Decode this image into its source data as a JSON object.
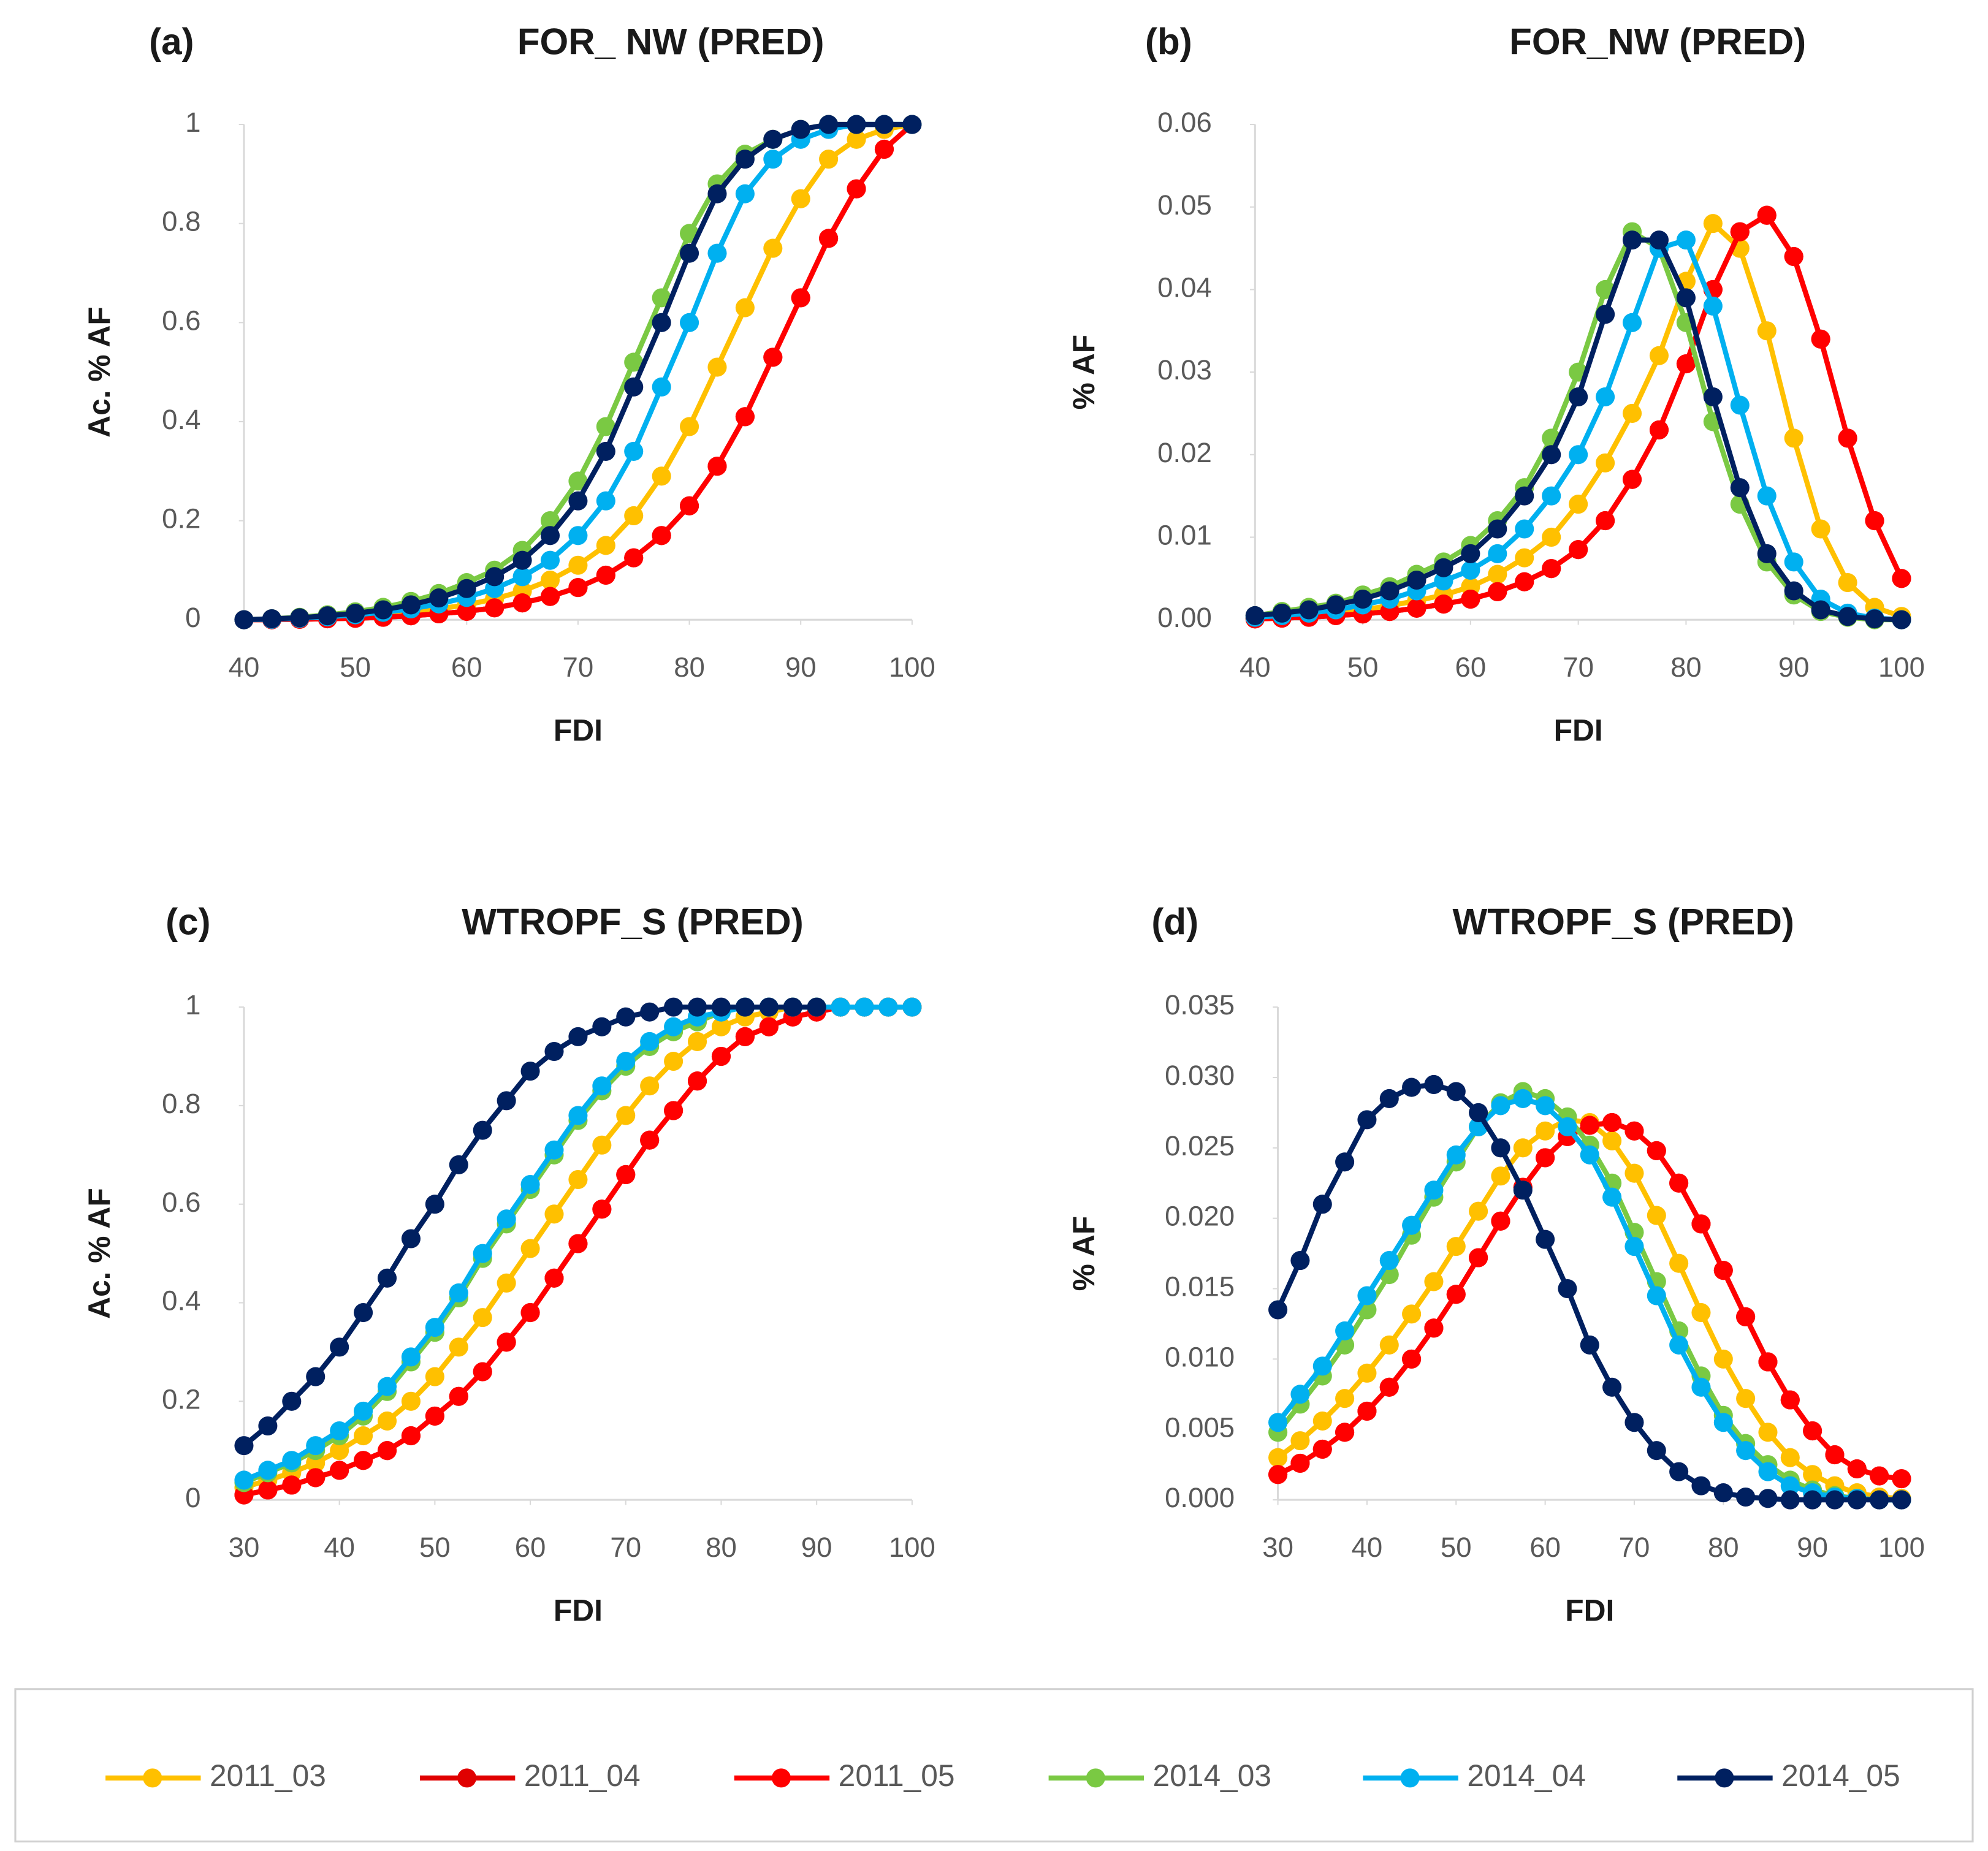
{
  "chart_data": [
    {
      "type": "line",
      "panel_label": "(a)",
      "title": "FOR_ NW (PRED)",
      "xlabel": "FDI",
      "ylabel": "Ac. % AF",
      "x": [
        40,
        42.5,
        45,
        47.5,
        50,
        52.5,
        55,
        57.5,
        60,
        62.5,
        65,
        67.5,
        70,
        72.5,
        75,
        77.5,
        80,
        82.5,
        85,
        87.5,
        90,
        92.5,
        95,
        97.5,
        100
      ],
      "xlim": [
        40,
        100
      ],
      "xticks": [
        40,
        50,
        60,
        70,
        80,
        90,
        100
      ],
      "ylim": [
        0,
        1
      ],
      "yticks": [
        0,
        0.2,
        0.4,
        0.6,
        0.8,
        1
      ],
      "series": [
        {
          "name": "2011_03",
          "color": "#ffc000",
          "values": [
            0,
            0.001,
            0.002,
            0.004,
            0.006,
            0.01,
            0.015,
            0.022,
            0.03,
            0.042,
            0.058,
            0.08,
            0.11,
            0.15,
            0.21,
            0.29,
            0.39,
            0.51,
            0.63,
            0.75,
            0.85,
            0.93,
            0.97,
            0.99,
            1
          ]
        },
        {
          "name": "2011_04",
          "color": "#e00000",
          "values": [
            0,
            0,
            0.001,
            0.002,
            0.003,
            0.005,
            0.008,
            0.012,
            0.017,
            0.024,
            0.034,
            0.047,
            0.065,
            0.09,
            0.125,
            0.17,
            0.23,
            0.31,
            0.41,
            0.53,
            0.65,
            0.77,
            0.87,
            0.95,
            1
          ]
        },
        {
          "name": "2011_05",
          "color": "#ff0000",
          "values": [
            0,
            0,
            0.001,
            0.002,
            0.003,
            0.005,
            0.008,
            0.012,
            0.017,
            0.024,
            0.034,
            0.047,
            0.065,
            0.09,
            0.125,
            0.17,
            0.23,
            0.31,
            0.41,
            0.53,
            0.65,
            0.77,
            0.87,
            0.95,
            1
          ]
        },
        {
          "name": "2014_03",
          "color": "#7ac943",
          "values": [
            0,
            0.002,
            0.005,
            0.01,
            0.016,
            0.025,
            0.037,
            0.053,
            0.075,
            0.1,
            0.14,
            0.2,
            0.28,
            0.39,
            0.52,
            0.65,
            0.78,
            0.88,
            0.94,
            0.97,
            0.99,
            1,
            1,
            1,
            1
          ]
        },
        {
          "name": "2014_04",
          "color": "#00b0f0",
          "values": [
            0,
            0.001,
            0.003,
            0.006,
            0.01,
            0.015,
            0.022,
            0.032,
            0.045,
            0.063,
            0.087,
            0.12,
            0.17,
            0.24,
            0.34,
            0.47,
            0.6,
            0.74,
            0.86,
            0.93,
            0.97,
            0.99,
            1,
            1,
            1
          ]
        },
        {
          "name": "2014_05",
          "color": "#002060",
          "values": [
            0,
            0.002,
            0.004,
            0.008,
            0.013,
            0.02,
            0.03,
            0.044,
            0.063,
            0.087,
            0.12,
            0.17,
            0.24,
            0.34,
            0.47,
            0.6,
            0.74,
            0.86,
            0.93,
            0.97,
            0.99,
            1,
            1,
            1,
            1
          ]
        }
      ]
    },
    {
      "type": "line",
      "panel_label": "(b)",
      "title": "FOR_NW (PRED)",
      "xlabel": "FDI",
      "ylabel": "% AF",
      "x": [
        40,
        42.5,
        45,
        47.5,
        50,
        52.5,
        55,
        57.5,
        60,
        62.5,
        65,
        67.5,
        70,
        72.5,
        75,
        77.5,
        80,
        82.5,
        85,
        87.5,
        90,
        92.5,
        95,
        97.5,
        100
      ],
      "xlim": [
        40,
        100
      ],
      "xticks": [
        40,
        50,
        60,
        70,
        80,
        90,
        100
      ],
      "ylim": [
        0,
        0.06
      ],
      "yticks": [
        {
          "value": 0,
          "label": "0.00"
        },
        0.01,
        0.02,
        0.03,
        0.04,
        0.05,
        0.06
      ],
      "series": [
        {
          "name": "2011_03",
          "color": "#ffc000",
          "values": [
            0.0002,
            0.0003,
            0.0005,
            0.0008,
            0.0012,
            0.0017,
            0.0023,
            0.003,
            0.004,
            0.0055,
            0.0075,
            0.01,
            0.014,
            0.019,
            0.025,
            0.032,
            0.041,
            0.048,
            0.045,
            0.035,
            0.022,
            0.011,
            0.0045,
            0.0015,
            0.0004
          ]
        },
        {
          "name": "2011_04",
          "color": "#e00000",
          "values": [
            0.0001,
            0.0002,
            0.0003,
            0.0005,
            0.0007,
            0.001,
            0.0014,
            0.0019,
            0.0025,
            0.0034,
            0.0046,
            0.0062,
            0.0085,
            0.012,
            0.017,
            0.023,
            0.031,
            0.04,
            0.047,
            0.049,
            0.044,
            0.034,
            0.022,
            0.012,
            0.005
          ]
        },
        {
          "name": "2011_05",
          "color": "#ff0000",
          "values": [
            0.0001,
            0.0002,
            0.0003,
            0.0005,
            0.0007,
            0.001,
            0.0014,
            0.0019,
            0.0025,
            0.0034,
            0.0046,
            0.0062,
            0.0085,
            0.012,
            0.017,
            0.023,
            0.031,
            0.04,
            0.047,
            0.049,
            0.044,
            0.034,
            0.022,
            0.012,
            0.005
          ]
        },
        {
          "name": "2014_03",
          "color": "#7ac943",
          "values": [
            0.0005,
            0.001,
            0.0015,
            0.002,
            0.003,
            0.004,
            0.0055,
            0.007,
            0.009,
            0.012,
            0.016,
            0.022,
            0.03,
            0.04,
            0.047,
            0.045,
            0.036,
            0.024,
            0.014,
            0.007,
            0.003,
            0.001,
            0.0003,
            0,
            0
          ]
        },
        {
          "name": "2014_04",
          "color": "#00b0f0",
          "values": [
            0.0003,
            0.0005,
            0.0008,
            0.0012,
            0.0018,
            0.0025,
            0.0035,
            0.0047,
            0.006,
            0.008,
            0.011,
            0.015,
            0.02,
            0.027,
            0.036,
            0.045,
            0.046,
            0.038,
            0.026,
            0.015,
            0.007,
            0.0025,
            0.0008,
            0.0002,
            0
          ]
        },
        {
          "name": "2014_05",
          "color": "#002060",
          "values": [
            0.0005,
            0.0008,
            0.0012,
            0.0018,
            0.0025,
            0.0035,
            0.0048,
            0.0063,
            0.008,
            0.011,
            0.015,
            0.02,
            0.027,
            0.037,
            0.046,
            0.046,
            0.039,
            0.027,
            0.016,
            0.008,
            0.0035,
            0.0012,
            0.0004,
            0.0001,
            0
          ]
        }
      ]
    },
    {
      "type": "line",
      "panel_label": "(c)",
      "title": "WTROPF_S (PRED)",
      "xlabel": "FDI",
      "ylabel": "Ac. % AF",
      "x": [
        30,
        32.5,
        35,
        37.5,
        40,
        42.5,
        45,
        47.5,
        50,
        52.5,
        55,
        57.5,
        60,
        62.5,
        65,
        67.5,
        70,
        72.5,
        75,
        77.5,
        80,
        82.5,
        85,
        87.5,
        90,
        92.5,
        95,
        97.5,
        100
      ],
      "xlim": [
        30,
        100
      ],
      "xticks": [
        30,
        40,
        50,
        60,
        70,
        80,
        90,
        100
      ],
      "ylim": [
        0,
        1
      ],
      "yticks": [
        0,
        0.2,
        0.4,
        0.6,
        0.8,
        1
      ],
      "series": [
        {
          "name": "2011_03",
          "color": "#ffc000",
          "values": [
            0.025,
            0.04,
            0.055,
            0.075,
            0.1,
            0.13,
            0.16,
            0.2,
            0.25,
            0.31,
            0.37,
            0.44,
            0.51,
            0.58,
            0.65,
            0.72,
            0.78,
            0.84,
            0.89,
            0.93,
            0.96,
            0.98,
            0.99,
            1,
            1,
            1,
            1,
            1,
            1
          ]
        },
        {
          "name": "2011_04",
          "color": "#e00000",
          "values": [
            0.01,
            0.02,
            0.03,
            0.045,
            0.06,
            0.08,
            0.1,
            0.13,
            0.17,
            0.21,
            0.26,
            0.32,
            0.38,
            0.45,
            0.52,
            0.59,
            0.66,
            0.73,
            0.79,
            0.85,
            0.9,
            0.94,
            0.96,
            0.98,
            0.99,
            1,
            1,
            1,
            1
          ]
        },
        {
          "name": "2011_05",
          "color": "#ff0000",
          "values": [
            0.01,
            0.02,
            0.03,
            0.045,
            0.06,
            0.08,
            0.1,
            0.13,
            0.17,
            0.21,
            0.26,
            0.32,
            0.38,
            0.45,
            0.52,
            0.59,
            0.66,
            0.73,
            0.79,
            0.85,
            0.9,
            0.94,
            0.96,
            0.98,
            0.99,
            1,
            1,
            1,
            1
          ]
        },
        {
          "name": "2014_03",
          "color": "#7ac943",
          "values": [
            0.035,
            0.055,
            0.075,
            0.1,
            0.13,
            0.17,
            0.22,
            0.28,
            0.34,
            0.41,
            0.49,
            0.56,
            0.63,
            0.7,
            0.77,
            0.83,
            0.88,
            0.92,
            0.95,
            0.97,
            0.99,
            1,
            1,
            1,
            1,
            1,
            1,
            1,
            1
          ]
        },
        {
          "name": "2014_04",
          "color": "#00b0f0",
          "values": [
            0.04,
            0.06,
            0.08,
            0.11,
            0.14,
            0.18,
            0.23,
            0.29,
            0.35,
            0.42,
            0.5,
            0.57,
            0.64,
            0.71,
            0.78,
            0.84,
            0.89,
            0.93,
            0.96,
            0.98,
            0.99,
            1,
            1,
            1,
            1,
            1,
            1,
            1,
            1
          ]
        },
        {
          "name": "2014_05",
          "color": "#002060",
          "values": [
            0.11,
            0.15,
            0.2,
            0.25,
            0.31,
            0.38,
            0.45,
            0.53,
            0.6,
            0.68,
            0.75,
            0.81,
            0.87,
            0.91,
            0.94,
            0.96,
            0.98,
            0.99,
            1,
            1,
            1,
            1,
            1,
            1,
            1,
            null,
            null,
            null,
            null
          ]
        }
      ]
    },
    {
      "type": "line",
      "panel_label": "(d)",
      "title": "WTROPF_S (PRED)",
      "xlabel": "FDI",
      "ylabel": "% AF",
      "x": [
        30,
        32.5,
        35,
        37.5,
        40,
        42.5,
        45,
        47.5,
        50,
        52.5,
        55,
        57.5,
        60,
        62.5,
        65,
        67.5,
        70,
        72.5,
        75,
        77.5,
        80,
        82.5,
        85,
        87.5,
        90,
        92.5,
        95,
        97.5,
        100
      ],
      "xlim": [
        30,
        100
      ],
      "xticks": [
        30,
        40,
        50,
        60,
        70,
        80,
        90,
        100
      ],
      "ylim": [
        0,
        0.035
      ],
      "yticks": [
        {
          "value": 0,
          "label": "0.000"
        },
        0.005,
        {
          "value": 0.01,
          "label": "0.010"
        },
        0.015,
        {
          "value": 0.02,
          "label": "0.020"
        },
        0.025,
        {
          "value": 0.03,
          "label": "0.030"
        },
        0.035
      ],
      "series": [
        {
          "name": "2011_03",
          "color": "#ffc000",
          "values": [
            0.003,
            0.0042,
            0.0056,
            0.0072,
            0.009,
            0.011,
            0.0132,
            0.0155,
            0.018,
            0.0205,
            0.023,
            0.025,
            0.0262,
            0.027,
            0.0268,
            0.0255,
            0.0232,
            0.0202,
            0.0168,
            0.0133,
            0.01,
            0.0072,
            0.0048,
            0.003,
            0.0018,
            0.001,
            0.0005,
            0.0002,
            0.0001
          ]
        },
        {
          "name": "2011_04",
          "color": "#e00000",
          "values": [
            0.0018,
            0.0026,
            0.0036,
            0.0048,
            0.0063,
            0.008,
            0.01,
            0.0122,
            0.0146,
            0.0172,
            0.0198,
            0.0222,
            0.0243,
            0.0258,
            0.0266,
            0.0268,
            0.0262,
            0.0248,
            0.0225,
            0.0196,
            0.0163,
            0.013,
            0.0098,
            0.0071,
            0.0049,
            0.0032,
            0.0022,
            0.0017,
            0.0015
          ]
        },
        {
          "name": "2011_05",
          "color": "#ff0000",
          "values": [
            0.0018,
            0.0026,
            0.0036,
            0.0048,
            0.0063,
            0.008,
            0.01,
            0.0122,
            0.0146,
            0.0172,
            0.0198,
            0.0222,
            0.0243,
            0.0258,
            0.0266,
            0.0268,
            0.0262,
            0.0248,
            0.0225,
            0.0196,
            0.0163,
            0.013,
            0.0098,
            0.0071,
            0.0049,
            0.0032,
            0.0022,
            0.0017,
            0.0015
          ]
        },
        {
          "name": "2014_03",
          "color": "#7ac943",
          "values": [
            0.0048,
            0.0068,
            0.0088,
            0.011,
            0.0135,
            0.016,
            0.0188,
            0.0215,
            0.024,
            0.0265,
            0.0282,
            0.029,
            0.0285,
            0.0272,
            0.0252,
            0.0225,
            0.019,
            0.0155,
            0.012,
            0.0088,
            0.006,
            0.004,
            0.0025,
            0.0014,
            0.0007,
            0.0003,
            0.0001,
            0,
            0
          ]
        },
        {
          "name": "2014_04",
          "color": "#00b0f0",
          "values": [
            0.0055,
            0.0075,
            0.0095,
            0.012,
            0.0145,
            0.017,
            0.0195,
            0.022,
            0.0245,
            0.0265,
            0.028,
            0.0285,
            0.028,
            0.0265,
            0.0245,
            0.0215,
            0.018,
            0.0145,
            0.011,
            0.008,
            0.0055,
            0.0035,
            0.002,
            0.001,
            0.0005,
            0.0002,
            0.0001,
            0,
            0
          ]
        },
        {
          "name": "2014_05",
          "color": "#002060",
          "values": [
            0.0135,
            0.017,
            0.021,
            0.024,
            0.027,
            0.0285,
            0.0293,
            0.0295,
            0.029,
            0.0275,
            0.025,
            0.022,
            0.0185,
            0.015,
            0.011,
            0.008,
            0.0055,
            0.0035,
            0.002,
            0.001,
            0.0005,
            0.0002,
            0.0001,
            0,
            0,
            0,
            0,
            0,
            0
          ]
        }
      ]
    }
  ]
}
